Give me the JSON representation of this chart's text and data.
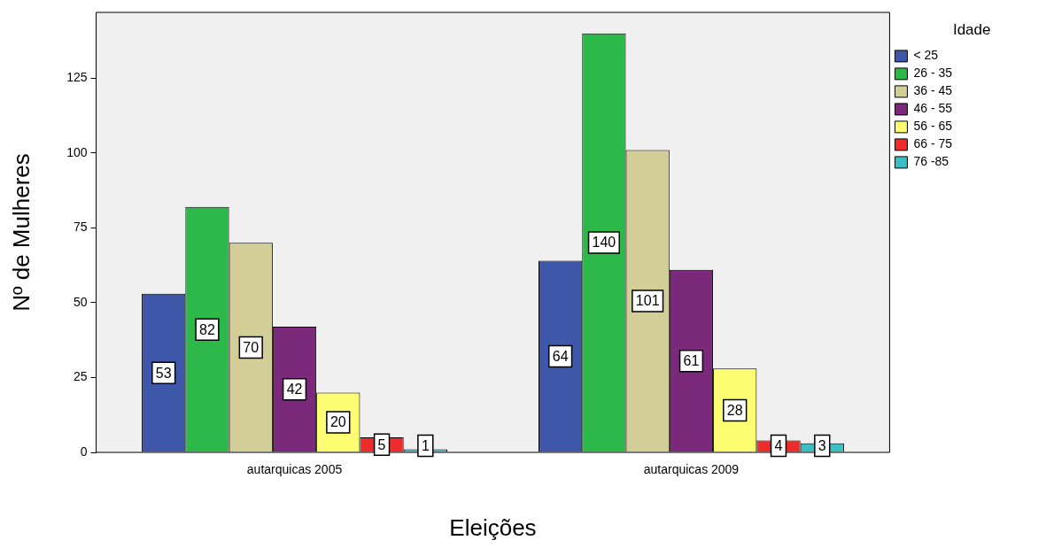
{
  "chart_data": {
    "type": "bar",
    "xlabel": "Eleições",
    "ylabel": "Nº de Mulheres",
    "legend_title": "Idade",
    "categories": [
      "autarquicas 2005",
      "autarquicas 2009"
    ],
    "series": [
      {
        "name": "< 25",
        "color": "#3f57a8",
        "values": [
          53,
          64
        ]
      },
      {
        "name": "26 - 35",
        "color": "#2db84a",
        "values": [
          82,
          140
        ]
      },
      {
        "name": "36 - 45",
        "color": "#d3ce97",
        "values": [
          70,
          101
        ]
      },
      {
        "name": "46 - 55",
        "color": "#7b2a7b",
        "values": [
          42,
          61
        ]
      },
      {
        "name": "56 - 65",
        "color": "#fdfd72",
        "values": [
          20,
          28
        ]
      },
      {
        "name": "66 - 75",
        "color": "#ee2c2c",
        "values": [
          5,
          4
        ]
      },
      {
        "name": "76 -85",
        "color": "#3cbfc4",
        "values": [
          1,
          3
        ]
      }
    ],
    "ylim": [
      0,
      147
    ],
    "yticks": [
      0,
      25,
      50,
      75,
      100,
      125
    ],
    "grid": false,
    "legend": "top right",
    "data_labels": true
  }
}
